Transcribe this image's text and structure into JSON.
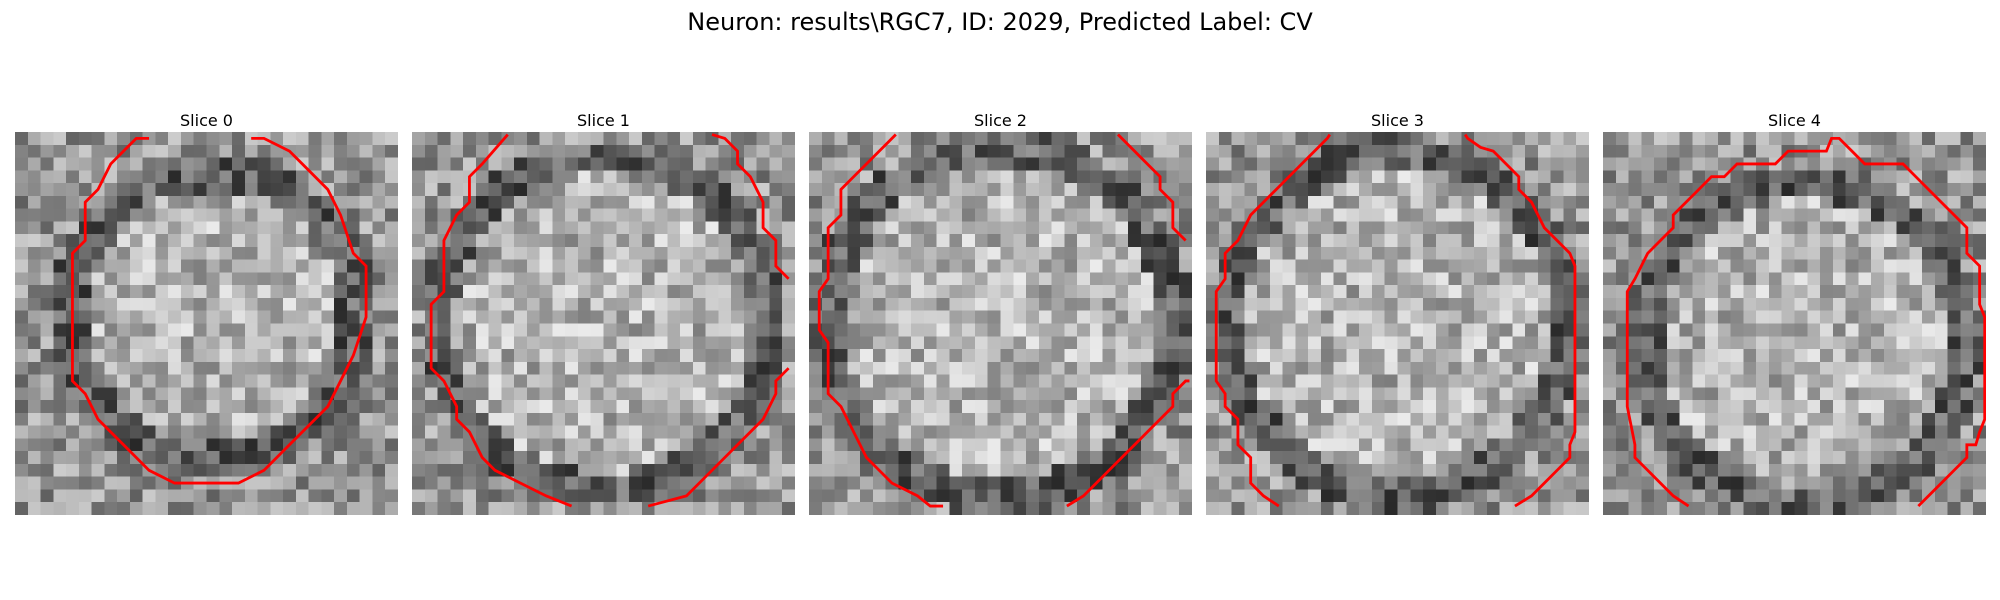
{
  "figure": {
    "title": "Neuron: results\\RGC7, ID: 2029, Predicted Label: CV"
  },
  "panels": [
    {
      "title": "Slice 0"
    },
    {
      "title": "Slice 1"
    },
    {
      "title": "Slice 2"
    },
    {
      "title": "Slice 3"
    },
    {
      "title": "Slice 4"
    }
  ],
  "colors": {
    "contour": "#ff0000",
    "background": "#ffffff"
  }
}
